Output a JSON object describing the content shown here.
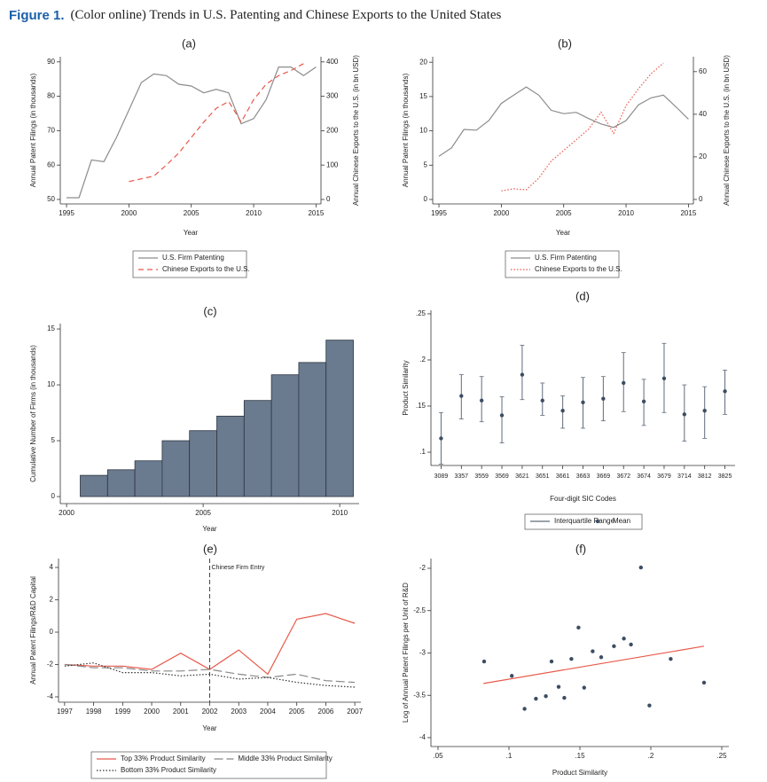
{
  "figure": {
    "label": "Figure 1.",
    "caption": "(Color online) Trends in U.S. Patenting and Chinese Exports to the United States"
  },
  "chart_data": [
    {
      "type": "line",
      "title": "(a)",
      "xlabel": "Year",
      "ylabel": "Annual Patent Filings (in thousands)",
      "y2label": "Annual Chinese Exports to the U.S. (in bn USD)",
      "x": [
        1995,
        1996,
        1997,
        1998,
        1999,
        2000,
        2001,
        2002,
        2003,
        2004,
        2005,
        2006,
        2007,
        2008,
        2009,
        2010,
        2011,
        2012,
        2013,
        2014,
        2015
      ],
      "xlim": [
        1994.5,
        2015.4
      ],
      "xticks": [
        1995,
        2000,
        2005,
        2010,
        2015
      ],
      "ylim": [
        48.7,
        91.5
      ],
      "yticks": [
        50,
        60,
        70,
        80,
        90
      ],
      "y2lim": [
        -13,
        415
      ],
      "y2ticks": [
        0,
        100,
        200,
        300,
        400
      ],
      "series": [
        {
          "name": "U.S. Firm Patenting",
          "color": "#8c8c8c",
          "dash": "solid",
          "values": [
            50.5,
            50.5,
            61.5,
            61,
            68,
            76,
            84,
            86.5,
            86,
            83.5,
            83,
            81,
            82,
            81,
            72,
            73.5,
            79,
            88.5,
            88.5,
            86,
            88.5
          ]
        },
        {
          "name": "Chinese Exports to the U.S.",
          "color": "#e8594a",
          "dash": "dashed",
          "axis": "y2",
          "values": [
            null,
            null,
            null,
            null,
            null,
            52,
            60,
            68,
            100,
            135,
            180,
            225,
            265,
            285,
            225,
            290,
            335,
            360,
            375,
            395,
            null
          ]
        }
      ]
    },
    {
      "type": "line",
      "title": "(b)",
      "xlabel": "Year",
      "ylabel": "Annual Patent Filings (in thousands)",
      "y2label": "Annual Chinese Exports to the U.S. (in bn USD)",
      "x": [
        1995,
        1996,
        1997,
        1998,
        1999,
        2000,
        2001,
        2002,
        2003,
        2004,
        2005,
        2006,
        2007,
        2008,
        2009,
        2010,
        2011,
        2012,
        2013,
        2014,
        2015
      ],
      "xlim": [
        1994.5,
        2015.4
      ],
      "xticks": [
        1995,
        2000,
        2005,
        2010,
        2015
      ],
      "ylim": [
        -0.65,
        20.8
      ],
      "yticks": [
        0,
        5,
        10,
        15,
        20
      ],
      "y2lim": [
        -2.1,
        67
      ],
      "y2ticks": [
        0,
        20,
        40,
        60
      ],
      "series": [
        {
          "name": "U.S. Firm Patenting",
          "color": "#8c8c8c",
          "dash": "solid",
          "values": [
            6.3,
            7.5,
            10.2,
            10.1,
            11.5,
            14,
            15.2,
            16.4,
            15.2,
            13,
            12.5,
            12.7,
            11.8,
            11,
            10.5,
            11.5,
            13.8,
            14.8,
            15.2,
            13.5,
            11.7
          ]
        },
        {
          "name": "Chinese Exports to the U.S.",
          "color": "#e8594a",
          "dash": "dotted",
          "axis": "y2",
          "values": [
            null,
            null,
            null,
            null,
            null,
            4,
            5,
            4.5,
            10,
            18,
            23,
            28,
            33,
            41,
            31,
            44,
            52,
            59,
            64,
            null,
            null
          ]
        }
      ]
    },
    {
      "type": "histogram",
      "title": "(c)",
      "xlabel": "Year",
      "ylabel": "Cumulative Number of Firms (in thousands)",
      "bins": [
        2000.5,
        2001.5,
        2002.5,
        2003.5,
        2004.5,
        2005.5,
        2006.5,
        2007.5,
        2008.5,
        2009.5,
        2010.5
      ],
      "values": [
        1.9,
        2.4,
        3.2,
        5.0,
        5.9,
        7.2,
        8.6,
        10.9,
        12.0,
        14.0
      ],
      "color": "#6b7b8f",
      "xlim": [
        1999.77,
        2010.71
      ],
      "xticks": [
        2000,
        2005,
        2010
      ],
      "ylim": [
        -0.63,
        15.48
      ],
      "yticks": [
        0,
        5,
        10,
        15
      ]
    },
    {
      "type": "errorbar",
      "title": "(d)",
      "xlabel": "Four-digit SIC Codes",
      "ylabel": "Product Similarity",
      "categories": [
        "3089",
        "3357",
        "3559",
        "3569",
        "3621",
        "3651",
        "3661",
        "3663",
        "3669",
        "3672",
        "3674",
        "3679",
        "3714",
        "3812",
        "3825"
      ],
      "ylim": [
        0.0856,
        0.2538
      ],
      "yticks": [
        {
          "value": 0.1,
          "label": ".1"
        },
        {
          "value": 0.15,
          "label": ".15"
        },
        {
          "value": 0.2,
          "label": ".2"
        },
        {
          "value": 0.25,
          "label": ".25"
        }
      ],
      "series": [
        {
          "name": "Interquartile Range",
          "color": "#5f6b7a",
          "low": [
            0.087,
            0.136,
            0.133,
            0.11,
            0.157,
            0.14,
            0.126,
            0.126,
            0.134,
            0.144,
            0.129,
            0.143,
            0.112,
            0.115,
            0.141
          ],
          "high": [
            0.143,
            0.184,
            0.182,
            0.16,
            0.216,
            0.175,
            0.161,
            0.181,
            0.182,
            0.208,
            0.179,
            0.218,
            0.173,
            0.171,
            0.189
          ]
        },
        {
          "name": "Mean",
          "color": "#3d4d63",
          "values": [
            0.115,
            0.161,
            0.156,
            0.14,
            0.184,
            0.156,
            0.145,
            0.154,
            0.158,
            0.175,
            0.155,
            0.18,
            0.141,
            0.145,
            0.166
          ]
        }
      ]
    },
    {
      "type": "line",
      "title": "(e)",
      "xlabel": "Year",
      "ylabel": "Annual Patent Filings/R&D Capital",
      "x": [
        1997,
        1998,
        1999,
        2000,
        2001,
        2002,
        2003,
        2004,
        2005,
        2006,
        2007
      ],
      "xlim": [
        1996.79,
        2007.21
      ],
      "xticks": [
        1997,
        1998,
        1999,
        2000,
        2001,
        2002,
        2003,
        2004,
        2005,
        2006,
        2007
      ],
      "ylim": [
        -4.33,
        4.55
      ],
      "yticks": [
        -4,
        -2,
        0,
        2,
        4
      ],
      "annotations": [
        {
          "x": 2002,
          "text": "Chinese Firm Entry"
        }
      ],
      "series": [
        {
          "name": "Top 33% Product Similarity",
          "color": "#e8594a",
          "dash": "solid",
          "values": [
            -2.0,
            -2.1,
            -2.1,
            -2.3,
            -1.3,
            -2.3,
            -1.1,
            -2.6,
            0.8,
            1.15,
            0.55
          ]
        },
        {
          "name": "Middle 33% Product Similarity",
          "color": "#888888",
          "dash": "longdash",
          "values": [
            -2.0,
            -2.2,
            -2.2,
            -2.4,
            -2.4,
            -2.3,
            -2.6,
            -2.8,
            -2.6,
            -3.0,
            -3.1
          ]
        },
        {
          "name": "Bottom 33% Product Similarity",
          "color": "#333333",
          "dash": "dotted",
          "values": [
            -2.1,
            -1.9,
            -2.5,
            -2.5,
            -2.7,
            -2.6,
            -2.9,
            -2.8,
            -3.1,
            -3.3,
            -3.4
          ]
        }
      ]
    },
    {
      "type": "scatter",
      "title": "(f)",
      "xlabel": "Product Similarity",
      "ylabel": "Log of Annual Patent Filings per Unit of R&D",
      "x": [
        0.0825,
        0.102,
        0.111,
        0.119,
        0.126,
        0.13,
        0.135,
        0.139,
        0.144,
        0.149,
        0.153,
        0.159,
        0.165,
        0.174,
        0.181,
        0.186,
        0.193,
        0.199,
        0.214,
        0.2375
      ],
      "values": [
        -3.1,
        -3.27,
        -3.66,
        -3.54,
        -3.51,
        -3.1,
        -3.4,
        -3.53,
        -3.07,
        -2.7,
        -3.41,
        -2.98,
        -3.05,
        -2.92,
        -2.83,
        -2.9,
        -1.99,
        -3.62,
        -3.07,
        -3.35
      ],
      "color": "#3d4d63",
      "fit": {
        "x": [
          0.082,
          0.2375
        ],
        "values": [
          -3.36,
          -2.92
        ],
        "color": "#e8594a"
      },
      "xlim": [
        0.045,
        0.255
      ],
      "xticks": [
        {
          "value": 0.05,
          "label": ".05"
        },
        {
          "value": 0.1,
          "label": ".1"
        },
        {
          "value": 0.15,
          "label": ".15"
        },
        {
          "value": 0.2,
          "label": ".2"
        },
        {
          "value": 0.25,
          "label": ".25"
        }
      ],
      "ylim": [
        -4.105,
        -1.885
      ],
      "yticks": [
        -4,
        -3.5,
        -3,
        -2.5,
        -2
      ]
    }
  ]
}
